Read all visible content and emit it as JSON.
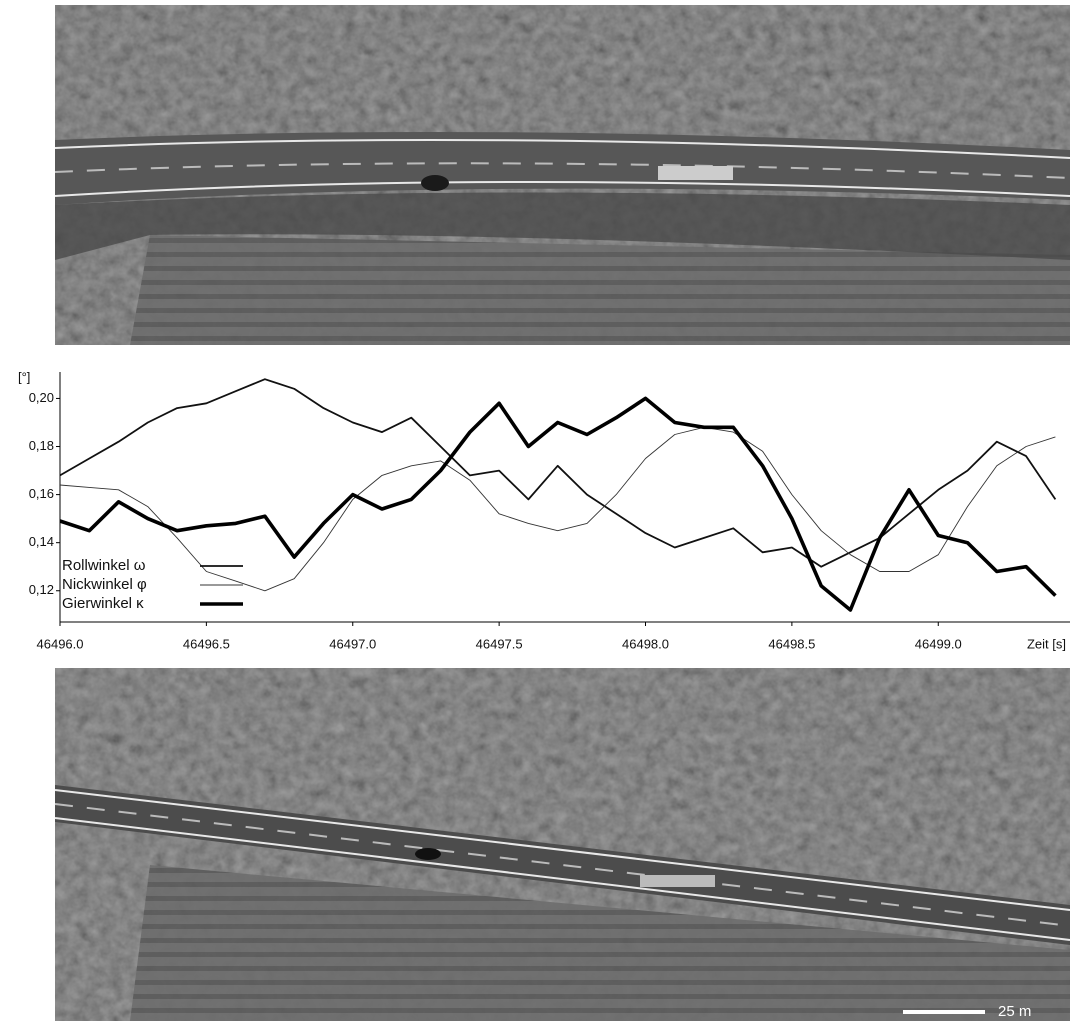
{
  "chart_data": {
    "type": "line",
    "ylabel": "[°]",
    "xlabel": "Zeit [s]",
    "x": [
      46496.0,
      46496.1,
      46496.2,
      46496.3,
      46496.4,
      46496.5,
      46496.6,
      46496.7,
      46496.8,
      46496.9,
      46497.0,
      46497.1,
      46497.2,
      46497.3,
      46497.4,
      46497.5,
      46497.6,
      46497.7,
      46497.8,
      46497.9,
      46498.0,
      46498.1,
      46498.2,
      46498.3,
      46498.4,
      46498.5,
      46498.6,
      46498.7,
      46498.8,
      46498.9,
      46499.0,
      46499.1,
      46499.2,
      46499.3,
      46499.4
    ],
    "series": [
      {
        "name": "Rollwinkel ω",
        "color": "#111111",
        "line_width": 1.8,
        "values": [
          0.168,
          0.175,
          0.182,
          0.19,
          0.196,
          0.198,
          0.203,
          0.208,
          0.204,
          0.196,
          0.19,
          0.186,
          0.192,
          0.18,
          0.168,
          0.17,
          0.158,
          0.172,
          0.16,
          0.152,
          0.144,
          0.138,
          0.142,
          0.146,
          0.136,
          0.138,
          0.13,
          0.136,
          0.142,
          0.152,
          0.162,
          0.17,
          0.182,
          0.176,
          0.158
        ]
      },
      {
        "name": "Nickwinkel φ",
        "color": "#333333",
        "line_width": 0.9,
        "values": [
          0.164,
          0.163,
          0.162,
          0.155,
          0.142,
          0.128,
          0.124,
          0.12,
          0.125,
          0.14,
          0.158,
          0.168,
          0.172,
          0.174,
          0.166,
          0.152,
          0.148,
          0.145,
          0.148,
          0.16,
          0.175,
          0.185,
          0.188,
          0.186,
          0.178,
          0.16,
          0.145,
          0.135,
          0.128,
          0.128,
          0.135,
          0.155,
          0.172,
          0.18,
          0.184
        ]
      },
      {
        "name": "Gierwinkel κ",
        "color": "#000000",
        "line_width": 3.6,
        "values": [
          0.149,
          0.145,
          0.157,
          0.15,
          0.145,
          0.147,
          0.148,
          0.151,
          0.134,
          0.148,
          0.16,
          0.154,
          0.158,
          0.17,
          0.186,
          0.198,
          0.18,
          0.19,
          0.185,
          0.192,
          0.2,
          0.19,
          0.188,
          0.188,
          0.172,
          0.15,
          0.122,
          0.112,
          0.142,
          0.162,
          0.143,
          0.14,
          0.128,
          0.13,
          0.118
        ]
      }
    ],
    "xlim": [
      46496.0,
      46499.45
    ],
    "ylim": [
      0.107,
      0.211
    ],
    "xticks": [
      {
        "value": 46496.0,
        "label": "46496.0"
      },
      46496.5,
      {
        "value": 46497.0,
        "label": "46497.0"
      },
      46497.5,
      {
        "value": 46498.0,
        "label": "46498.0"
      },
      46498.5,
      {
        "value": 46499.0,
        "label": "46499.0"
      }
    ],
    "yticks": [
      {
        "value": 0.12,
        "label": "0,12"
      },
      {
        "value": 0.14,
        "label": "0,14"
      },
      {
        "value": 0.16,
        "label": "0,16"
      },
      {
        "value": 0.18,
        "label": "0,18"
      },
      {
        "value": 0.2,
        "label": "0,20"
      }
    ],
    "grid": false,
    "legend": "lower left"
  },
  "images": {
    "scale_bar_label": "25 m"
  }
}
